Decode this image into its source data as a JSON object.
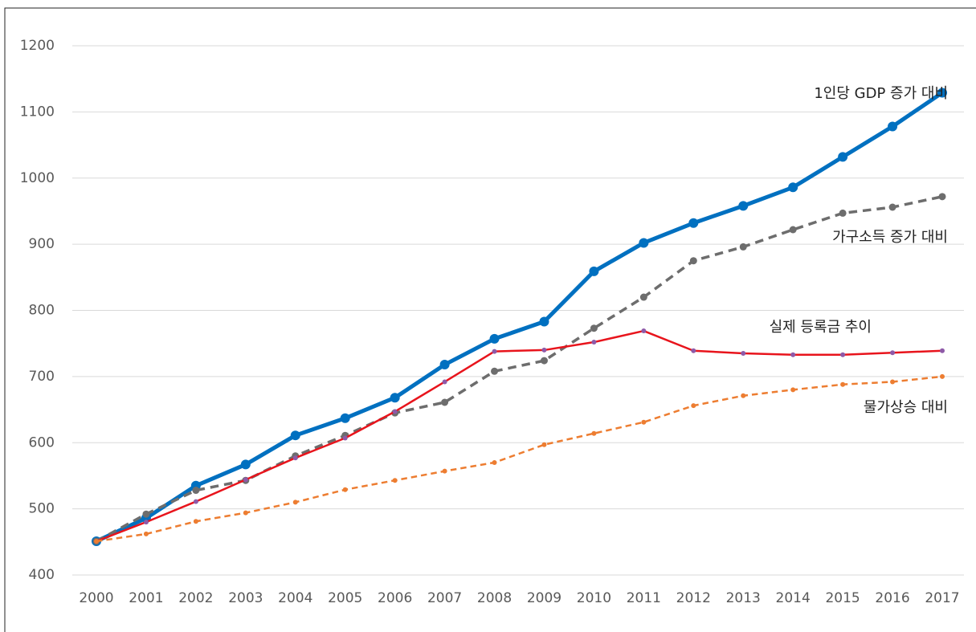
{
  "chart_data": {
    "type": "line",
    "x": [
      2000,
      2001,
      2002,
      2003,
      2004,
      2005,
      2006,
      2007,
      2008,
      2009,
      2010,
      2011,
      2012,
      2013,
      2014,
      2015,
      2016,
      2017
    ],
    "xlim": [
      2000,
      2017
    ],
    "xticks": [
      2000,
      2001,
      2002,
      2003,
      2004,
      2005,
      2006,
      2007,
      2008,
      2009,
      2010,
      2011,
      2012,
      2013,
      2014,
      2015,
      2016,
      2017
    ],
    "ylim": [
      400,
      1200
    ],
    "yticks": [
      400,
      500,
      600,
      700,
      800,
      900,
      1000,
      1100,
      1200
    ],
    "grid": true,
    "series": [
      {
        "name": "1인당 GDP 증가 대비",
        "color": "#0070c0",
        "style": "solid",
        "width": 5,
        "values": [
          451,
          486,
          535,
          567,
          611,
          637,
          668,
          718,
          757,
          783,
          859,
          902,
          932,
          958,
          986,
          1032,
          1078,
          1129
        ]
      },
      {
        "name": "가구소득 증가 대비",
        "color": "#6d6d6d",
        "style": "dashed",
        "width": 3.5,
        "values": [
          451,
          492,
          528,
          543,
          580,
          611,
          645,
          661,
          708,
          724,
          773,
          820,
          875,
          896,
          922,
          947,
          956,
          972
        ]
      },
      {
        "name": "실제 등록금 추이",
        "color": "#e8141c",
        "style": "solid",
        "width": 2.5,
        "values": [
          451,
          480,
          511,
          544,
          577,
          607,
          647,
          692,
          738,
          740,
          752,
          769,
          739,
          735,
          733,
          733,
          736,
          739
        ]
      },
      {
        "name": "물가상승 대비",
        "color": "#ed7d31",
        "style": "dashed",
        "width": 2.5,
        "values": [
          451,
          462,
          481,
          494,
          510,
          529,
          543,
          557,
          570,
          597,
          614,
          631,
          656,
          671,
          680,
          688,
          692,
          700
        ]
      }
    ]
  }
}
